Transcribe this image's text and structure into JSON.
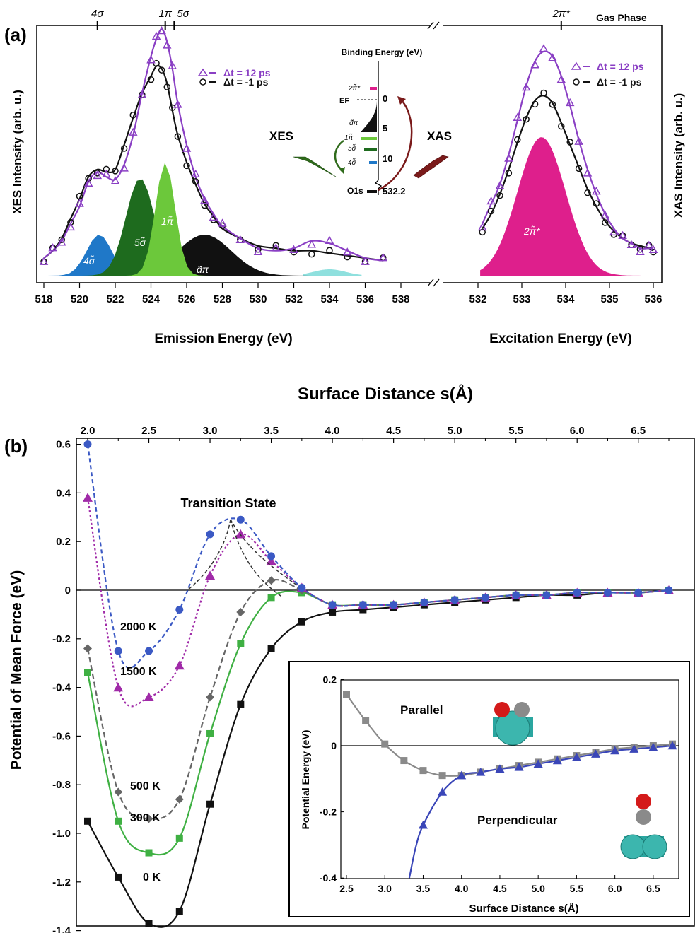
{
  "panel_a": {
    "label": "(a)",
    "gas_phase_label": "Gas Phase",
    "top_orbital_labels": [
      "4σ",
      "1π",
      "5σ",
      "2π*"
    ],
    "legend": [
      "Δt = 12 ps",
      "Δt = -1 ps"
    ],
    "xes_ylabel": "XES Intensity (arb. u.)",
    "xas_ylabel": "XAS Intensity (arb. u.)",
    "xes_xlabel": "Emission Energy (eV)",
    "xas_xlabel": "Excitation Energy (eV)",
    "xes_ticks": [
      "518",
      "520",
      "522",
      "524",
      "526",
      "528",
      "530",
      "532",
      "534",
      "536",
      "538"
    ],
    "xas_ticks": [
      "532",
      "533",
      "534",
      "535",
      "536"
    ],
    "peak_labels": [
      "4σ̃",
      "5σ̃",
      "1π̃",
      "d̃π",
      "2π̃*"
    ],
    "level_diagram": {
      "title": "Binding Energy (eV)",
      "scale": [
        "0",
        "5",
        "10",
        "532.2"
      ],
      "levels": [
        "2π̃*",
        "EF",
        "d̃π",
        "1π̃",
        "5σ̃",
        "4σ̃",
        "O1s"
      ],
      "xes": "XES",
      "xas": "XAS"
    },
    "colors": {
      "pump": "#8a3fc4",
      "ref": "#111111",
      "band_4s": "#1f78c8",
      "band_5s": "#1e6b1e",
      "band_1p": "#6cc83b",
      "band_dp": "#111111",
      "band_2pi": "#de1f8c",
      "band_aqua": "#8fe0de"
    }
  },
  "panel_b": {
    "label": "(b)",
    "top_title": "Surface Distance s(Å)",
    "ylabel": "Potential of Mean Force (eV)",
    "x_ticks": [
      "2.0",
      "2.5",
      "3.0",
      "3.5",
      "4.0",
      "4.5",
      "5.0",
      "5.5",
      "6.0",
      "6.5"
    ],
    "y_ticks": [
      "0.6",
      "0.4",
      "0.2",
      "0",
      "-0.2",
      "-0.4",
      "-0.6",
      "-0.8",
      "-1.0",
      "-1.2",
      "-1.4"
    ],
    "annotation": "Transition State",
    "series_labels": [
      "2000 K",
      "1500 K",
      "500 K",
      "300 K",
      "0 K"
    ],
    "inset": {
      "xlabel": "Surface Distance s(Å)",
      "ylabel": "Potential Energy (eV)",
      "x_ticks": [
        "2.5",
        "3.0",
        "3.5",
        "4.0",
        "4.5",
        "5.0",
        "5.5",
        "6.0",
        "6.5"
      ],
      "y_ticks": [
        "0.2",
        "0",
        "-0.2",
        "-0.4"
      ],
      "labels": [
        "Parallel",
        "Perpendicular"
      ]
    }
  },
  "chart_data": [
    {
      "type": "line",
      "title": "",
      "xlabel": "Emission Energy (eV)",
      "ylabel": "XES Intensity (arb. u.)",
      "xlim": [
        518,
        538
      ],
      "series": [
        {
          "name": "Δt = 12 ps",
          "x": [
            518,
            518.5,
            519,
            519.5,
            520,
            520.5,
            521,
            521.5,
            522,
            522.5,
            523,
            523.5,
            524,
            524.3,
            524.6,
            524.9,
            525.2,
            525.5,
            526,
            526.5,
            527,
            527.5,
            528,
            529,
            530,
            531,
            532,
            533,
            534,
            535,
            536,
            537
          ],
          "y": [
            0.06,
            0.09,
            0.13,
            0.2,
            0.27,
            0.37,
            0.41,
            0.39,
            0.38,
            0.44,
            0.56,
            0.73,
            0.88,
            0.95,
            0.99,
            0.94,
            0.83,
            0.69,
            0.52,
            0.39,
            0.3,
            0.24,
            0.19,
            0.14,
            0.1,
            0.09,
            0.1,
            0.13,
            0.12,
            0.09,
            0.06,
            0.05
          ]
        },
        {
          "name": "Δt = -1 ps",
          "x": [
            518,
            518.5,
            519,
            519.5,
            520,
            520.5,
            521,
            521.5,
            522,
            522.5,
            523,
            523.5,
            524,
            524.3,
            524.6,
            524.9,
            525.2,
            525.5,
            526,
            526.5,
            527,
            527.5,
            528,
            529,
            530,
            531,
            532,
            533,
            534,
            535,
            536,
            537
          ],
          "y": [
            0.06,
            0.09,
            0.14,
            0.22,
            0.3,
            0.39,
            0.42,
            0.41,
            0.42,
            0.52,
            0.63,
            0.73,
            0.8,
            0.84,
            0.83,
            0.77,
            0.66,
            0.56,
            0.45,
            0.36,
            0.28,
            0.23,
            0.18,
            0.14,
            0.11,
            0.1,
            0.09,
            0.09,
            0.08,
            0.07,
            0.06,
            0.05
          ]
        }
      ]
    },
    {
      "type": "line",
      "title": "",
      "xlabel": "Excitation Energy (eV)",
      "ylabel": "XAS Intensity (arb. u.)",
      "xlim": [
        532,
        536
      ],
      "series": [
        {
          "name": "Δt = 12 ps",
          "x": [
            532.1,
            532.3,
            532.5,
            532.7,
            532.9,
            533.1,
            533.3,
            533.5,
            533.7,
            533.9,
            534.1,
            534.3,
            534.5,
            534.7,
            534.9,
            535.1,
            535.3,
            535.5,
            535.7,
            535.9,
            536
          ],
          "y": [
            0.2,
            0.28,
            0.36,
            0.48,
            0.62,
            0.76,
            0.86,
            0.9,
            0.88,
            0.8,
            0.68,
            0.54,
            0.42,
            0.32,
            0.24,
            0.18,
            0.14,
            0.12,
            0.1,
            0.1,
            0.1
          ]
        },
        {
          "name": "Δt = -1 ps",
          "x": [
            532.1,
            532.3,
            532.5,
            532.7,
            532.9,
            533.1,
            533.3,
            533.5,
            533.7,
            533.9,
            534.1,
            534.3,
            534.5,
            534.7,
            534.9,
            535.1,
            535.3,
            535.5,
            535.7,
            535.9,
            536
          ],
          "y": [
            0.18,
            0.24,
            0.32,
            0.42,
            0.53,
            0.63,
            0.7,
            0.72,
            0.69,
            0.61,
            0.52,
            0.43,
            0.34,
            0.27,
            0.21,
            0.17,
            0.14,
            0.12,
            0.11,
            0.1,
            0.09
          ]
        }
      ]
    },
    {
      "type": "line",
      "title": "Surface Distance s(Å)",
      "xlabel": "Surface Distance s(Å)",
      "ylabel": "Potential of Mean Force (eV)",
      "xlim": [
        2.0,
        6.75
      ],
      "ylim": [
        -1.4,
        0.6
      ],
      "series": [
        {
          "name": "2000 K",
          "x": [
            2.0,
            2.25,
            2.5,
            2.75,
            3.0,
            3.25,
            3.5,
            3.75,
            4.0,
            4.25,
            4.5,
            4.75,
            5.0,
            5.25,
            5.5,
            5.75,
            6.0,
            6.25,
            6.5,
            6.75
          ],
          "y": [
            0.6,
            -0.25,
            -0.25,
            -0.08,
            0.23,
            0.29,
            0.14,
            0.01,
            -0.06,
            -0.06,
            -0.06,
            -0.05,
            -0.04,
            -0.03,
            -0.02,
            -0.02,
            -0.01,
            -0.01,
            -0.01,
            0.0
          ]
        },
        {
          "name": "1500 K",
          "x": [
            2.0,
            2.25,
            2.5,
            2.75,
            3.0,
            3.25,
            3.5,
            3.75,
            4.0,
            4.25,
            4.5,
            4.75,
            5.0,
            5.25,
            5.5,
            5.75,
            6.0,
            6.25,
            6.5,
            6.75
          ],
          "y": [
            0.38,
            -0.4,
            -0.44,
            -0.31,
            0.06,
            0.23,
            0.12,
            0.01,
            -0.06,
            -0.06,
            -0.06,
            -0.05,
            -0.04,
            -0.03,
            -0.02,
            -0.02,
            -0.01,
            -0.01,
            -0.01,
            0.0
          ]
        },
        {
          "name": "500 K",
          "x": [
            2.0,
            2.25,
            2.5,
            2.75,
            3.0,
            3.25,
            3.5,
            3.75,
            4.0,
            4.25,
            4.5,
            4.75,
            5.0,
            5.25,
            5.5,
            5.75,
            6.0,
            6.25,
            6.5,
            6.75
          ],
          "y": [
            -0.24,
            -0.83,
            -0.94,
            -0.86,
            -0.44,
            -0.09,
            0.04,
            0.0,
            -0.06,
            -0.06,
            -0.06,
            -0.05,
            -0.04,
            -0.03,
            -0.02,
            -0.02,
            -0.01,
            -0.01,
            -0.01,
            0.0
          ]
        },
        {
          "name": "300 K",
          "x": [
            2.0,
            2.25,
            2.5,
            2.75,
            3.0,
            3.25,
            3.5,
            3.75,
            4.0,
            4.25,
            4.5,
            4.75,
            5.0,
            5.25,
            5.5,
            5.75,
            6.0,
            6.25,
            6.5,
            6.75
          ],
          "y": [
            -0.34,
            -0.95,
            -1.08,
            -1.02,
            -0.59,
            -0.22,
            -0.03,
            -0.01,
            -0.06,
            -0.06,
            -0.06,
            -0.05,
            -0.04,
            -0.03,
            -0.02,
            -0.02,
            -0.01,
            -0.01,
            -0.01,
            0.0
          ]
        },
        {
          "name": "0 K",
          "x": [
            2.0,
            2.25,
            2.5,
            2.75,
            3.0,
            3.25,
            3.5,
            3.75,
            4.0,
            4.25,
            4.5,
            4.75,
            5.0,
            5.25,
            5.5,
            5.75,
            6.0,
            6.25,
            6.5,
            6.75
          ],
          "y": [
            -0.95,
            -1.18,
            -1.37,
            -1.32,
            -0.88,
            -0.47,
            -0.24,
            -0.13,
            -0.09,
            -0.08,
            -0.07,
            -0.06,
            -0.05,
            -0.04,
            -0.03,
            -0.02,
            -0.02,
            -0.01,
            -0.01,
            0.0
          ]
        }
      ]
    },
    {
      "type": "line",
      "title": "",
      "xlabel": "Surface Distance s(Å)",
      "ylabel": "Potential Energy (eV)",
      "xlim": [
        2.4,
        6.8
      ],
      "ylim": [
        -0.4,
        0.2
      ],
      "series": [
        {
          "name": "Parallel",
          "x": [
            2.5,
            2.75,
            3.0,
            3.25,
            3.5,
            3.75,
            4.0,
            4.25,
            4.5,
            4.75,
            5.0,
            5.25,
            5.5,
            5.75,
            6.0,
            6.25,
            6.5,
            6.75
          ],
          "y": [
            0.155,
            0.075,
            0.005,
            -0.045,
            -0.075,
            -0.09,
            -0.09,
            -0.08,
            -0.07,
            -0.06,
            -0.05,
            -0.04,
            -0.03,
            -0.02,
            -0.01,
            -0.005,
            0.0,
            0.005
          ]
        },
        {
          "name": "Perpendicular",
          "x": [
            3.5,
            3.75,
            4.0,
            4.25,
            4.5,
            4.75,
            5.0,
            5.25,
            5.5,
            5.75,
            6.0,
            6.25,
            6.5,
            6.75
          ],
          "y": [
            -0.24,
            -0.14,
            -0.09,
            -0.08,
            -0.07,
            -0.065,
            -0.055,
            -0.045,
            -0.035,
            -0.025,
            -0.015,
            -0.01,
            -0.005,
            0.0
          ]
        }
      ]
    }
  ]
}
